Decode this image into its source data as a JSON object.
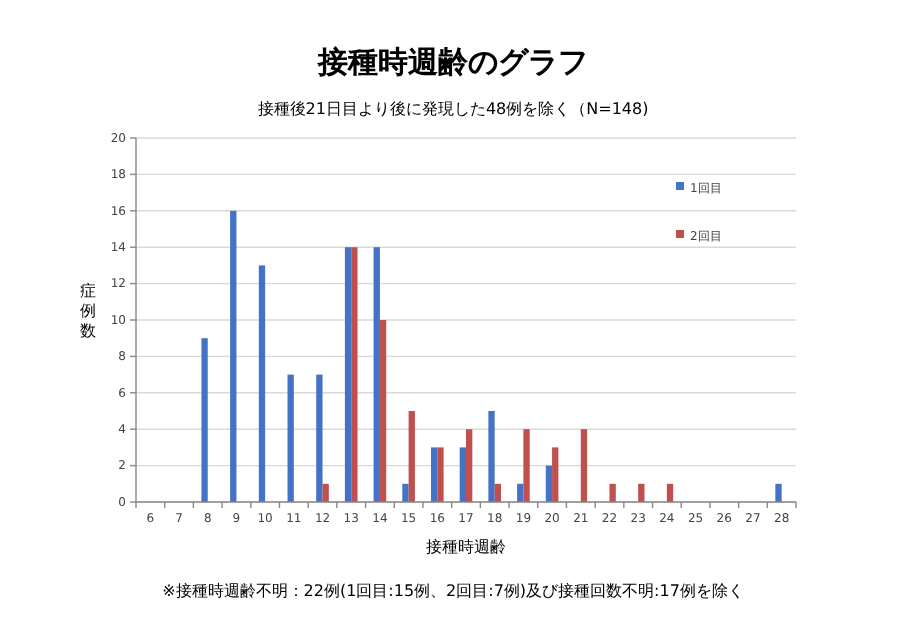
{
  "chart_data": {
    "type": "bar",
    "title": "接種時週齢のグラフ",
    "subtitle": "接種後21日目より後に発現した48例を除く（N=148)",
    "xlabel": "接種時週齢",
    "ylabel": "症例数",
    "categories": [
      "6",
      "7",
      "8",
      "9",
      "10",
      "11",
      "12",
      "13",
      "14",
      "15",
      "16",
      "17",
      "18",
      "19",
      "20",
      "21",
      "22",
      "23",
      "24",
      "25",
      "26",
      "27",
      "28"
    ],
    "series": [
      {
        "name": "1回目",
        "color": "#4472c4",
        "values": [
          0,
          0,
          9,
          16,
          13,
          7,
          7,
          14,
          14,
          1,
          3,
          3,
          5,
          1,
          2,
          0,
          0,
          0,
          0,
          0,
          0,
          0,
          1
        ]
      },
      {
        "name": "2回目",
        "color": "#c0504d",
        "values": [
          0,
          0,
          0,
          0,
          0,
          0,
          1,
          14,
          10,
          5,
          3,
          4,
          1,
          4,
          3,
          4,
          1,
          1,
          1,
          0,
          0,
          0,
          0
        ]
      }
    ],
    "ylim": [
      0,
      20
    ],
    "yticks": [
      0,
      2,
      4,
      6,
      8,
      10,
      12,
      14,
      16,
      18,
      20
    ],
    "grid": "y",
    "legend": "top right",
    "annotations": [
      "※接種時週齢不明：22例(1回目:15例、2回目:7例)及び接種回数不明:17例を除く"
    ]
  }
}
